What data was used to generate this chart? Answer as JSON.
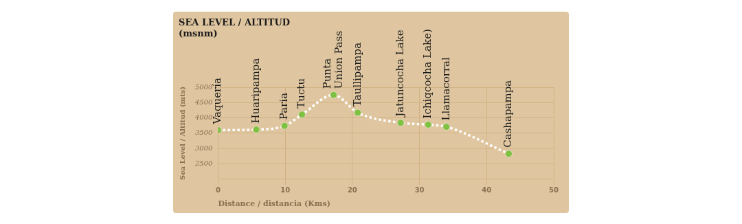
{
  "chart_data": {
    "type": "line",
    "title": "SEA LEVEL / ALTITUD",
    "subtitle": "(msnm)",
    "xlabel": "Distance / distancia (Kms)",
    "ylabel": "Sea Level / Altitud (mts)",
    "series": [
      {
        "color": "#ffffff",
        "colors": [
          "#7dc242",
          "#7dc242",
          "#7dc242",
          "#7dc242",
          "#7dc242",
          "#7dc242",
          "#7dc242",
          "#7dc242",
          "#7dc242",
          "#7dc242"
        ],
        "x": [
          0,
          5.7,
          9.9,
          12.5,
          17.2,
          20.8,
          27.2,
          31.3,
          34.0,
          43.3
        ],
        "values": [
          3600,
          3620,
          3740,
          4110,
          4750,
          4170,
          3840,
          3780,
          3710,
          2830
        ]
      }
    ],
    "annotations": [
      {
        "text": "Vaquería",
        "x": 0,
        "y": 3600
      },
      {
        "text": "Huaripampa",
        "x": 5.7,
        "y": 3620
      },
      {
        "text": "Paria",
        "x": 9.9,
        "y": 3740
      },
      {
        "text": "Tuctu",
        "x": 12.5,
        "y": 4110
      },
      {
        "text": "Punta\nUnion Pass",
        "x": 17.2,
        "y": 4750
      },
      {
        "text": "Taullipampa",
        "x": 20.8,
        "y": 4170
      },
      {
        "text": "Jatuncocha Lake",
        "x": 27.2,
        "y": 3840
      },
      {
        "text": "Ichiqcocha Lake)",
        "x": 31.3,
        "y": 3780
      },
      {
        "text": "Llamacorral",
        "x": 34.0,
        "y": 3710
      },
      {
        "text": "Cashapampa",
        "x": 43.3,
        "y": 2830
      }
    ],
    "xlim": [
      0,
      50
    ],
    "xticks": [
      0,
      10,
      20,
      30,
      40,
      50
    ],
    "ylim": [
      2000,
      5000
    ],
    "yticks": [
      2500,
      3000,
      3500,
      4000,
      4500,
      5000
    ],
    "grid": true,
    "legend": false,
    "marker": "circle",
    "line_style": "dotted"
  }
}
